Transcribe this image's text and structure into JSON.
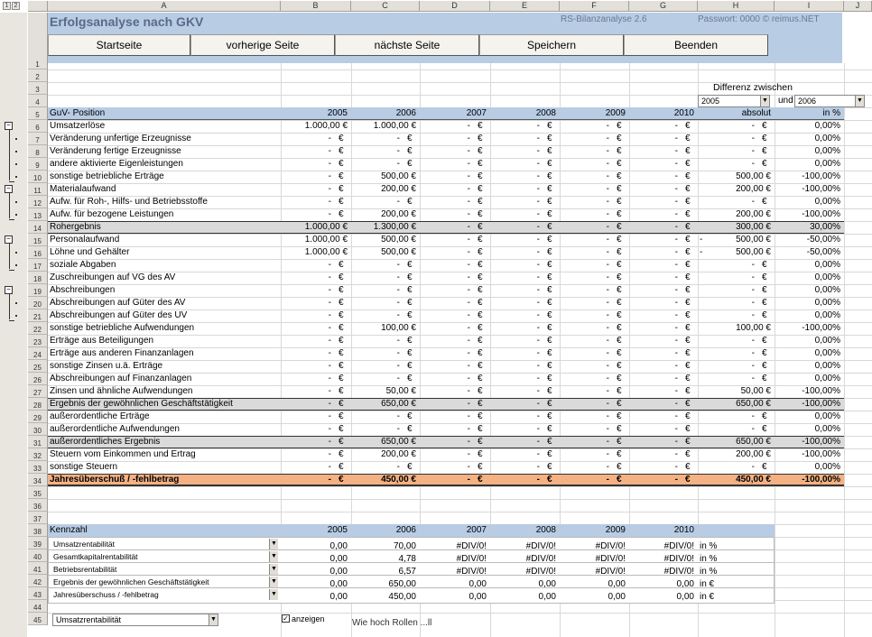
{
  "sheet": {
    "outline_levels": [
      "1",
      "2"
    ],
    "columns": [
      "A",
      "B",
      "C",
      "D",
      "E",
      "F",
      "G",
      "H",
      "I",
      "J"
    ],
    "title": "Erfolgsanalyse nach GKV",
    "version": "RS-Bilanzanalyse 2.6",
    "password": "Passwort: 0000",
    "copyright": "© reimus.NET"
  },
  "nav": {
    "home": "Startseite",
    "prev": "vorherige Seite",
    "next": "nächste Seite",
    "save": "Speichern",
    "exit": "Beenden"
  },
  "diff": {
    "label": "Differenz zwischen",
    "from": "2005",
    "and_label": "und",
    "to": "2006"
  },
  "guv": {
    "header": [
      "GuV- Position",
      "2005",
      "2006",
      "2007",
      "2008",
      "2009",
      "2010",
      "absolut",
      "in %"
    ],
    "rows": [
      {
        "n": "6",
        "label": "Umsatzerlöse",
        "v": [
          "1.000,00 €",
          "1.000,00 €",
          "- €",
          "- €",
          "- €",
          "- €",
          "- €",
          "0,00%"
        ]
      },
      {
        "n": "7",
        "label": "Veränderung unfertige Erzeugnisse",
        "v": [
          "- €",
          "- €",
          "- €",
          "- €",
          "- €",
          "- €",
          "- €",
          "0,00%"
        ]
      },
      {
        "n": "8",
        "label": "Veränderung fertige Erzeugnisse",
        "v": [
          "- €",
          "- €",
          "- €",
          "- €",
          "- €",
          "- €",
          "- €",
          "0,00%"
        ]
      },
      {
        "n": "9",
        "label": "andere aktivierte Eigenleistungen",
        "v": [
          "- €",
          "- €",
          "- €",
          "- €",
          "- €",
          "- €",
          "- €",
          "0,00%"
        ]
      },
      {
        "n": "10",
        "label": "sonstige betriebliche Erträge",
        "v": [
          "- €",
          "500,00 €",
          "- €",
          "- €",
          "- €",
          "- €",
          "500,00 €",
          "-100,00%"
        ]
      },
      {
        "n": "11",
        "label": "Materialaufwand",
        "v": [
          "- €",
          "200,00 €",
          "- €",
          "- €",
          "- €",
          "- €",
          "200,00 €",
          "-100,00%"
        ]
      },
      {
        "n": "12",
        "label": "Aufw. für Roh-, Hilfs- und Betriebsstoffe",
        "v": [
          "- €",
          "- €",
          "- €",
          "- €",
          "- €",
          "- €",
          "- €",
          "0,00%"
        ]
      },
      {
        "n": "13",
        "label": "Aufw. für bezogene Leistungen",
        "v": [
          "- €",
          "200,00 €",
          "- €",
          "- €",
          "- €",
          "- €",
          "200,00 €",
          "-100,00%"
        ]
      },
      {
        "n": "14",
        "label": "Rohergebnis",
        "v": [
          "1.000,00 €",
          "1.300,00 €",
          "- €",
          "- €",
          "- €",
          "- €",
          "300,00 €",
          "30,00%"
        ],
        "sum": true
      },
      {
        "n": "15",
        "label": "Personalaufwand",
        "v": [
          "1.000,00 €",
          "500,00 €",
          "- €",
          "- €",
          "- €",
          "- €",
          "- 500,00 €",
          "-50,00%"
        ]
      },
      {
        "n": "16",
        "label": "Löhne und Gehälter",
        "v": [
          "1.000,00 €",
          "500,00 €",
          "- €",
          "- €",
          "- €",
          "- €",
          "- 500,00 €",
          "-50,00%"
        ]
      },
      {
        "n": "17",
        "label": "soziale Abgaben",
        "v": [
          "- €",
          "- €",
          "- €",
          "- €",
          "- €",
          "- €",
          "- €",
          "0,00%"
        ]
      },
      {
        "n": "18",
        "label": "Zuschreibungen auf VG des AV",
        "v": [
          "- €",
          "- €",
          "- €",
          "- €",
          "- €",
          "- €",
          "- €",
          "0,00%"
        ]
      },
      {
        "n": "19",
        "label": "Abschreibungen",
        "v": [
          "- €",
          "- €",
          "- €",
          "- €",
          "- €",
          "- €",
          "- €",
          "0,00%"
        ]
      },
      {
        "n": "20",
        "label": "Abschreibungen auf Güter des AV",
        "v": [
          "- €",
          "- €",
          "- €",
          "- €",
          "- €",
          "- €",
          "- €",
          "0,00%"
        ]
      },
      {
        "n": "21",
        "label": "Abschreibungen auf Güter des UV",
        "v": [
          "- €",
          "- €",
          "- €",
          "- €",
          "- €",
          "- €",
          "- €",
          "0,00%"
        ]
      },
      {
        "n": "22",
        "label": "sonstige betriebliche Aufwendungen",
        "v": [
          "- €",
          "100,00 €",
          "- €",
          "- €",
          "- €",
          "- €",
          "100,00 €",
          "-100,00%"
        ]
      },
      {
        "n": "23",
        "label": "Erträge aus Beteiligungen",
        "v": [
          "- €",
          "- €",
          "- €",
          "- €",
          "- €",
          "- €",
          "- €",
          "0,00%"
        ]
      },
      {
        "n": "24",
        "label": "Erträge aus anderen Finanzanlagen",
        "v": [
          "- €",
          "- €",
          "- €",
          "- €",
          "- €",
          "- €",
          "- €",
          "0,00%"
        ]
      },
      {
        "n": "25",
        "label": "sonstige Zinsen u.ä. Erträge",
        "v": [
          "- €",
          "- €",
          "- €",
          "- €",
          "- €",
          "- €",
          "- €",
          "0,00%"
        ]
      },
      {
        "n": "26",
        "label": "Abschreibungen auf Finanzanlagen",
        "v": [
          "- €",
          "- €",
          "- €",
          "- €",
          "- €",
          "- €",
          "- €",
          "0,00%"
        ]
      },
      {
        "n": "27",
        "label": "Zinsen und ähnliche Aufwendungen",
        "v": [
          "- €",
          "50,00 €",
          "- €",
          "- €",
          "- €",
          "- €",
          "50,00 €",
          "-100,00%"
        ]
      },
      {
        "n": "28",
        "label": "Ergebnis der gewöhnlichen Geschäftstätigkeit",
        "v": [
          "- €",
          "650,00 €",
          "- €",
          "- €",
          "- €",
          "- €",
          "650,00 €",
          "-100,00%"
        ],
        "sum": true
      },
      {
        "n": "29",
        "label": "außerordentliche Erträge",
        "v": [
          "- €",
          "- €",
          "- €",
          "- €",
          "- €",
          "- €",
          "- €",
          "0,00%"
        ]
      },
      {
        "n": "30",
        "label": "außerordentliche Aufwendungen",
        "v": [
          "- €",
          "- €",
          "- €",
          "- €",
          "- €",
          "- €",
          "- €",
          "0,00%"
        ]
      },
      {
        "n": "31",
        "label": "außerordentliches Ergebnis",
        "v": [
          "- €",
          "650,00 €",
          "- €",
          "- €",
          "- €",
          "- €",
          "650,00 €",
          "-100,00%"
        ],
        "sum": true
      },
      {
        "n": "32",
        "label": "Steuern vom Einkommen und Ertrag",
        "v": [
          "- €",
          "200,00 €",
          "- €",
          "- €",
          "- €",
          "- €",
          "200,00 €",
          "-100,00%"
        ]
      },
      {
        "n": "33",
        "label": "sonstige Steuern",
        "v": [
          "- €",
          "- €",
          "- €",
          "- €",
          "- €",
          "- €",
          "- €",
          "0,00%"
        ]
      },
      {
        "n": "34",
        "label": "Jahresüberschuß / -fehlbetrag",
        "v": [
          "- €",
          "450,00 €",
          "- €",
          "- €",
          "- €",
          "- €",
          "450,00 €",
          "-100,00%"
        ],
        "total": true
      }
    ]
  },
  "kennzahl": {
    "header": [
      "Kennzahl",
      "2005",
      "2006",
      "2007",
      "2008",
      "2009",
      "2010"
    ],
    "rows": [
      {
        "n": "39",
        "label": "Umsatzrentabilität",
        "v": [
          "0,00",
          "70,00",
          "#DIV/0!",
          "#DIV/0!",
          "#DIV/0!",
          "#DIV/0!"
        ],
        "unit": "in %"
      },
      {
        "n": "40",
        "label": "Gesamtkapitalrentabilität",
        "v": [
          "0,00",
          "4,78",
          "#DIV/0!",
          "#DIV/0!",
          "#DIV/0!",
          "#DIV/0!"
        ],
        "unit": "in %"
      },
      {
        "n": "41",
        "label": "Betriebsrentabilität",
        "v": [
          "0,00",
          "6,57",
          "#DIV/0!",
          "#DIV/0!",
          "#DIV/0!",
          "#DIV/0!"
        ],
        "unit": "in %"
      },
      {
        "n": "42",
        "label": "Ergebnis der gewöhnlichen Geschäftstätigkeit",
        "v": [
          "0,00",
          "650,00",
          "0,00",
          "0,00",
          "0,00",
          "0,00"
        ],
        "unit": "in €"
      },
      {
        "n": "43",
        "label": "Jahresüberschuss / -fehlbetrag",
        "v": [
          "0,00",
          "450,00",
          "0,00",
          "0,00",
          "0,00",
          "0,00"
        ],
        "unit": "in €"
      }
    ]
  },
  "bottom": {
    "select": "Umsatzrentabilität",
    "check_label": "anzeigen",
    "partial_text": "Wie hoch Rollen ...ll"
  },
  "colors": {
    "banner": "#b8cce4",
    "header_row": "#b8cce4",
    "sum_row": "#dadada",
    "total_row": "#f4b183"
  }
}
